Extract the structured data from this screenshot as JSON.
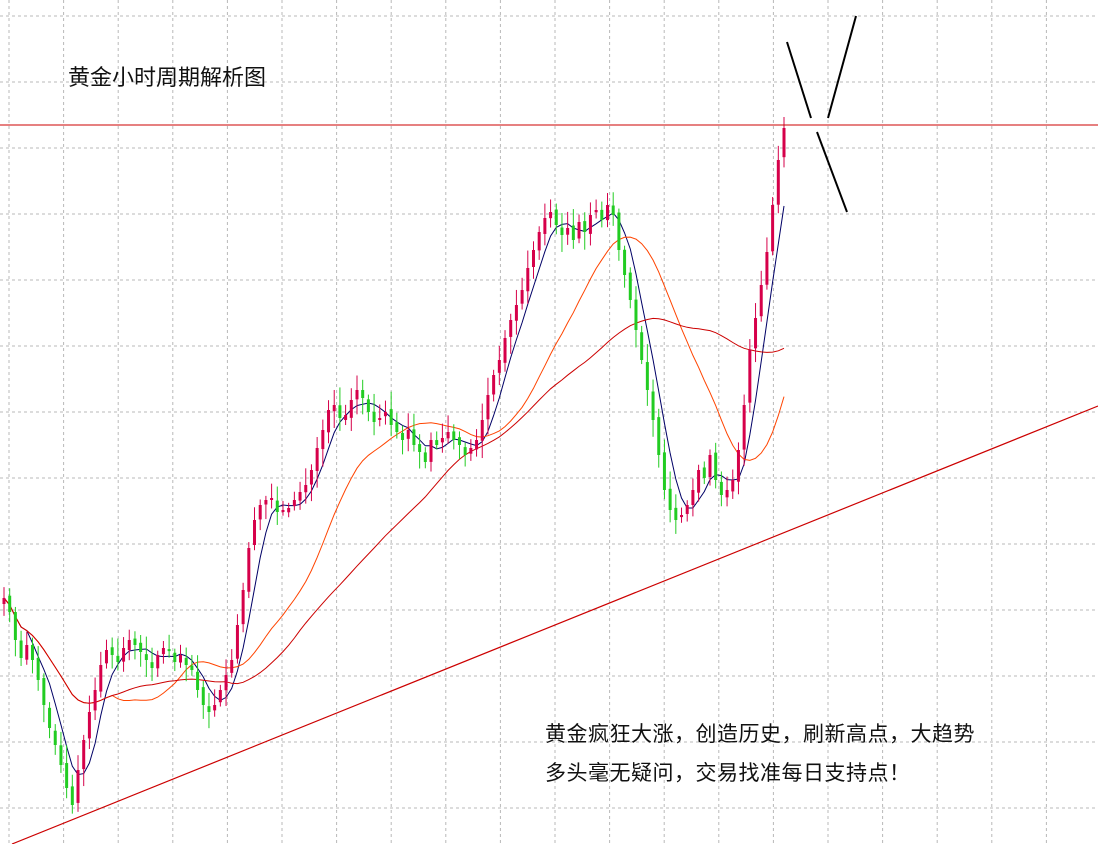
{
  "chart_data": {
    "type": "candlestick",
    "title": "黄金小时周期解析图",
    "annotation_lines": [
      "黄金疯狂大涨，创造历史，刷新高点，大趋势",
      "多头毫无疑问，交易找准每日支持点！"
    ],
    "grid": true,
    "colors": {
      "up": "#d6004a",
      "down": "#22cc22",
      "ma_fast": "#000066",
      "ma_slow": "#ff4400",
      "ma_long": "#cc0000",
      "resistance": "#cc0000",
      "trendline": "#cc0000",
      "marker": "#000000"
    },
    "closes": [
      598,
      612,
      640,
      658,
      645,
      660,
      680,
      705,
      728,
      745,
      765,
      788,
      805,
      770,
      740,
      712,
      690,
      665,
      650,
      655,
      662,
      648,
      640,
      645,
      652,
      660,
      668,
      655,
      648,
      650,
      662,
      655,
      665,
      670,
      690,
      705,
      712,
      705,
      690,
      675,
      660,
      625,
      590,
      548,
      520,
      505,
      500,
      498,
      512,
      510,
      508,
      500,
      492,
      485,
      470,
      448,
      430,
      410,
      405,
      418,
      415,
      400,
      390,
      398,
      412,
      422,
      418,
      412,
      425,
      432,
      440,
      430,
      445,
      452,
      462,
      440,
      445,
      438,
      432,
      440,
      445,
      455,
      448,
      440,
      420,
      395,
      375,
      360,
      338,
      320,
      305,
      290,
      268,
      250,
      232,
      218,
      212,
      225,
      235,
      228,
      240,
      222,
      232,
      215,
      210,
      220,
      205,
      215,
      250,
      275,
      300,
      330,
      360,
      390,
      420,
      455,
      490,
      510,
      520,
      515,
      505,
      490,
      470,
      478,
      455,
      480,
      495,
      490,
      480,
      450,
      405,
      350,
      318,
      285,
      252,
      205,
      160,
      128
    ],
    "levels": {
      "resistance": 1
    },
    "trendline_points": [
      [
        0,
        844
      ],
      [
        1098,
        406
      ]
    ]
  }
}
